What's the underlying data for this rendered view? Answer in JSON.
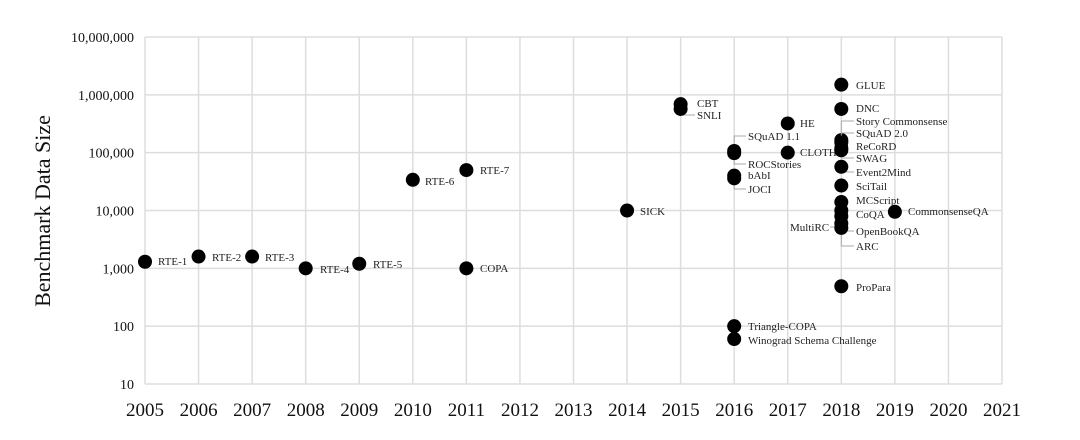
{
  "chart_data": {
    "type": "scatter",
    "title": "",
    "xlabel": "",
    "ylabel": "Benchmark Data Size",
    "xlim": [
      2005,
      2021
    ],
    "ylim": [
      10,
      10000000
    ],
    "y_scale": "log",
    "grid": true,
    "marker_color": "#000000",
    "grid_color": "#dddddd",
    "x_ticks": [
      "2005",
      "2006",
      "2007",
      "2008",
      "2009",
      "2010",
      "2011",
      "2012",
      "2013",
      "2014",
      "2015",
      "2016",
      "2017",
      "2018",
      "2019",
      "2020",
      "2021"
    ],
    "y_ticks": [
      "10",
      "100",
      "1,000",
      "10,000",
      "100,000",
      "1,000,000",
      "10,000,000"
    ],
    "points": [
      {
        "label": "RTE-1",
        "x": 2005,
        "y": 1300
      },
      {
        "label": "RTE-2",
        "x": 2006,
        "y": 1600
      },
      {
        "label": "RTE-3",
        "x": 2007,
        "y": 1600
      },
      {
        "label": "RTE-4",
        "x": 2008,
        "y": 1000
      },
      {
        "label": "RTE-5",
        "x": 2009,
        "y": 1200
      },
      {
        "label": "RTE-6",
        "x": 2010,
        "y": 34000
      },
      {
        "label": "RTE-7",
        "x": 2011,
        "y": 50000
      },
      {
        "label": "COPA",
        "x": 2011,
        "y": 1000
      },
      {
        "label": "SICK",
        "x": 2014,
        "y": 10000
      },
      {
        "label": "CBT",
        "x": 2015,
        "y": 690000
      },
      {
        "label": "SNLI",
        "x": 2015,
        "y": 570000
      },
      {
        "label": "SQuAD 1.1",
        "x": 2016,
        "y": 107000
      },
      {
        "label": "ROCStories",
        "x": 2016,
        "y": 98000
      },
      {
        "label": "bAbI",
        "x": 2016,
        "y": 40000
      },
      {
        "label": "JOCI",
        "x": 2016,
        "y": 36000
      },
      {
        "label": "Triangle-COPA",
        "x": 2016,
        "y": 100
      },
      {
        "label": "Winograd Schema Challenge",
        "x": 2016,
        "y": 60
      },
      {
        "label": "HE",
        "x": 2017,
        "y": 320000
      },
      {
        "label": "CLOTH",
        "x": 2017,
        "y": 100000
      },
      {
        "label": "GLUE",
        "x": 2018,
        "y": 1500000
      },
      {
        "label": "DNC",
        "x": 2018,
        "y": 570000
      },
      {
        "label": "Story Commonsense",
        "x": 2018,
        "y": 165000
      },
      {
        "label": "SQuAD 2.0",
        "x": 2018,
        "y": 150000
      },
      {
        "label": "ReCoRD",
        "x": 2018,
        "y": 120000
      },
      {
        "label": "SWAG",
        "x": 2018,
        "y": 110000
      },
      {
        "label": "Event2Mind",
        "x": 2018,
        "y": 57000
      },
      {
        "label": "SciTail",
        "x": 2018,
        "y": 27000
      },
      {
        "label": "MCScript",
        "x": 2018,
        "y": 14000
      },
      {
        "label": "CoQA",
        "x": 2018,
        "y": 10000
      },
      {
        "label": "MultiRC",
        "x": 2018,
        "y": 8000
      },
      {
        "label": "OpenBookQA",
        "x": 2018,
        "y": 6000
      },
      {
        "label": "ARC",
        "x": 2018,
        "y": 5000
      },
      {
        "label": "CommonsenseQA",
        "x": 2019,
        "y": 9500
      },
      {
        "label": "ProPara",
        "x": 2018,
        "y": 490
      }
    ]
  }
}
